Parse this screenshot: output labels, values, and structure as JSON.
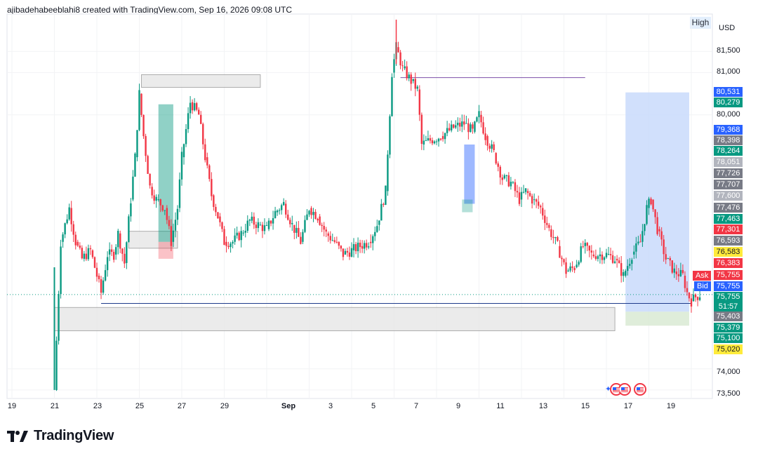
{
  "header": {
    "attribution": "ajibadehabeeblahi8 created with TradingView.com, Sep 16, 2026 09:08 UTC",
    "high_label": "High",
    "currency": "USD"
  },
  "brand": {
    "name": "TradingView"
  },
  "colors": {
    "up": "#089981",
    "down": "#f23645",
    "grid": "#f2f3f5",
    "zone": "#e6e6e6",
    "target_zone": "#c9dafc",
    "stop_zone": "#d9ead3",
    "level_line": "#1e3a8a",
    "purple_line": "#7b4fa8"
  },
  "price_axis": {
    "ticks": [
      "81,500",
      "81,000",
      "80,000",
      "74,000",
      "73,500"
    ],
    "labels": [
      {
        "text": "80,531",
        "color": "#2962ff"
      },
      {
        "text": "80,279",
        "color": "#089981"
      },
      {
        "text": "79,368",
        "color": "#2962ff"
      },
      {
        "text": "78,398",
        "color": "#787b86"
      },
      {
        "text": "78,264",
        "color": "#089981"
      },
      {
        "text": "78,051",
        "color": "#b2b5be"
      },
      {
        "text": "77,726",
        "color": "#787b86"
      },
      {
        "text": "77,707",
        "color": "#787b86"
      },
      {
        "text": "77,600",
        "color": "#b2b5be"
      },
      {
        "text": "77,476",
        "color": "#787b86"
      },
      {
        "text": "77,463",
        "color": "#089981"
      },
      {
        "text": "77,301",
        "color": "#f23645"
      },
      {
        "text": "76,593",
        "color": "#787b86"
      },
      {
        "text": "76,583",
        "color": "#ffeb3b"
      },
      {
        "text": "76,383",
        "color": "#f23645"
      },
      {
        "text": "75,755",
        "color": "#f23645"
      },
      {
        "text": "75,755",
        "color": "#2962ff"
      },
      {
        "text": "75,755",
        "color": "#089981"
      },
      {
        "text": "51:57",
        "color": "#089981"
      },
      {
        "text": "75,403",
        "color": "#787b86"
      },
      {
        "text": "75,379",
        "color": "#089981"
      },
      {
        "text": "75,100",
        "color": "#089981"
      },
      {
        "text": "75,020",
        "color": "#ffeb3b"
      }
    ],
    "ask_label": "Ask",
    "bid_label": "Bid"
  },
  "time_axis": {
    "ticks": [
      "19",
      "21",
      "23",
      "25",
      "27",
      "29",
      "Sep",
      "3",
      "5",
      "7",
      "9",
      "11",
      "13",
      "15",
      "17",
      "19"
    ]
  },
  "chart_data": {
    "type": "candlestick",
    "symbol_currency": "USD",
    "ylim": [
      73300,
      82300
    ],
    "x_ticks": [
      "19",
      "21",
      "23",
      "25",
      "27",
      "29",
      "Sep",
      "3",
      "5",
      "7",
      "9",
      "11",
      "13",
      "15",
      "17",
      "19"
    ],
    "y_ticks": [
      73500,
      74000,
      81000,
      81500
    ],
    "levels": {
      "current_price": 75755,
      "purple_line": 80880,
      "blue_line": 75545,
      "high": 82300,
      "low": 73500
    },
    "path_points": [
      [
        21,
        73500
      ],
      [
        21.3,
        77000
      ],
      [
        21.7,
        77800
      ],
      [
        22,
        77000
      ],
      [
        22.3,
        76600
      ],
      [
        22.7,
        76800
      ],
      [
        23,
        76200
      ],
      [
        23.2,
        75800
      ],
      [
        23.5,
        76700
      ],
      [
        23.8,
        76700
      ],
      [
        24,
        77200
      ],
      [
        24.3,
        76500
      ],
      [
        24.6,
        78000
      ],
      [
        24.8,
        79000
      ],
      [
        25,
        80500
      ],
      [
        25.2,
        79500
      ],
      [
        25.5,
        78300
      ],
      [
        25.8,
        78000
      ],
      [
        26.2,
        77800
      ],
      [
        26.5,
        77000
      ],
      [
        26.8,
        77800
      ],
      [
        27,
        79000
      ],
      [
        27.4,
        80300
      ],
      [
        27.8,
        80000
      ],
      [
        28.1,
        79000
      ],
      [
        28.4,
        78100
      ],
      [
        28.7,
        77600
      ],
      [
        29,
        77000
      ],
      [
        29.4,
        77000
      ],
      [
        29.8,
        77200
      ],
      [
        30.2,
        77500
      ],
      [
        30.6,
        77400
      ],
      [
        31,
        77300
      ],
      [
        31.4,
        77700
      ],
      [
        31.8,
        77900
      ],
      [
        32.2,
        77400
      ],
      [
        32.6,
        77000
      ],
      [
        33,
        77800
      ],
      [
        33.4,
        77600
      ],
      [
        33.8,
        77200
      ],
      [
        34.2,
        77000
      ],
      [
        34.6,
        76700
      ],
      [
        35,
        76800
      ],
      [
        35.4,
        76900
      ],
      [
        35.8,
        77000
      ],
      [
        36.2,
        77400
      ],
      [
        36.6,
        78200
      ],
      [
        36.9,
        81000
      ],
      [
        37.1,
        81600
      ],
      [
        37.4,
        81100
      ],
      [
        37.8,
        80800
      ],
      [
        38.1,
        80600
      ],
      [
        38.3,
        79300
      ],
      [
        38.7,
        79400
      ],
      [
        39.2,
        79500
      ],
      [
        39.8,
        79700
      ],
      [
        40.3,
        79800
      ],
      [
        40.7,
        79600
      ],
      [
        41,
        80000
      ],
      [
        41.3,
        79500
      ],
      [
        41.7,
        79100
      ],
      [
        42.1,
        78500
      ],
      [
        42.5,
        78400
      ],
      [
        42.9,
        78000
      ],
      [
        43.2,
        78200
      ],
      [
        43.5,
        78000
      ],
      [
        43.9,
        77800
      ],
      [
        44.3,
        77300
      ],
      [
        44.7,
        76900
      ],
      [
        45.1,
        76300
      ],
      [
        45.5,
        76400
      ],
      [
        45.9,
        76900
      ],
      [
        46.3,
        76700
      ],
      [
        46.7,
        76700
      ],
      [
        47,
        76700
      ],
      [
        47.4,
        76600
      ],
      [
        47.8,
        76200
      ],
      [
        48.2,
        76700
      ],
      [
        48.6,
        77000
      ],
      [
        48.9,
        77800
      ],
      [
        49.1,
        78000
      ],
      [
        49.4,
        77300
      ],
      [
        49.8,
        76600
      ],
      [
        50.2,
        76300
      ],
      [
        50.6,
        76200
      ],
      [
        50.8,
        75800
      ],
      [
        51,
        75600
      ],
      [
        51.2,
        75700
      ],
      [
        51.4,
        75755
      ]
    ],
    "zones": [
      {
        "name": "upper-supply",
        "x0": 25.1,
        "x1": 30.7,
        "y0": 80650,
        "y1": 80950
      },
      {
        "name": "demand-zone",
        "x0": 24.5,
        "x1": 26.8,
        "y0": 76850,
        "y1": 77250
      },
      {
        "name": "bottom-demand",
        "x0": 21,
        "x1": 47.4,
        "y0": 74900,
        "y1": 75450
      },
      {
        "name": "long-target",
        "x0": 47.9,
        "x1": 50.9,
        "y0": 75350,
        "y1": 80531
      },
      {
        "name": "long-stop",
        "x0": 47.9,
        "x1": 50.9,
        "y0": 75020,
        "y1": 75350
      }
    ]
  }
}
